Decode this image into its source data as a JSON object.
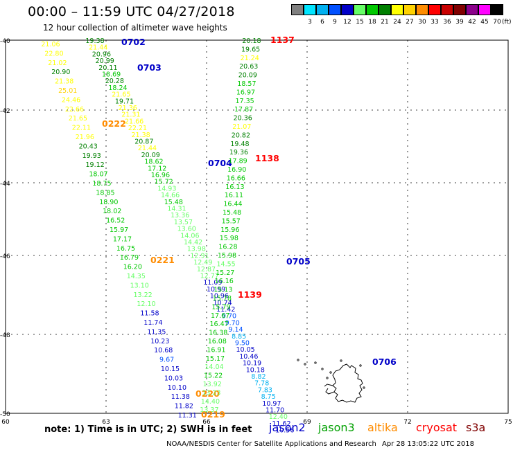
{
  "title": "00:00 – 11:59 UTC 04/27/2018",
  "subtitle": "12 hour collection of altimeter wave heights",
  "legend": {
    "unit": "(ft)",
    "items": [
      {
        "color": "#808080",
        "label": ""
      },
      {
        "color": "#00e5ff",
        "label": "3"
      },
      {
        "color": "#00b0f0",
        "label": "6"
      },
      {
        "color": "#0050ff",
        "label": "9"
      },
      {
        "color": "#0000c8",
        "label": "12"
      },
      {
        "color": "#66ff66",
        "label": "15"
      },
      {
        "color": "#00c800",
        "label": "18"
      },
      {
        "color": "#008000",
        "label": "21"
      },
      {
        "color": "#ffff00",
        "label": "24"
      },
      {
        "color": "#ffd200",
        "label": "27"
      },
      {
        "color": "#ff8c00",
        "label": "30"
      },
      {
        "color": "#ff0000",
        "label": "33"
      },
      {
        "color": "#c80000",
        "label": "36"
      },
      {
        "color": "#800000",
        "label": "39"
      },
      {
        "color": "#8b008b",
        "label": "42"
      },
      {
        "color": "#ff00ff",
        "label": "45"
      },
      {
        "color": "#000000",
        "label": "70"
      }
    ]
  },
  "axes": {
    "lat_labels": [
      "-40",
      "-42",
      "-44",
      "-46",
      "-48",
      "-50"
    ],
    "lon_labels": [
      "60",
      "63",
      "66",
      "69",
      "72",
      "75"
    ]
  },
  "tracks": [
    {
      "id": "A",
      "ids": [
        {
          "text": "0702",
          "color": "#0000c8"
        },
        {
          "text": "0703",
          "color": "#0000c8"
        },
        {
          "text": "0704",
          "color": "#0000c8"
        },
        {
          "text": "0705",
          "color": "#0000c8"
        },
        {
          "text": "0706",
          "color": "#0000c8"
        }
      ],
      "points": [
        {
          "v": "19.38",
          "c": "#008000"
        },
        {
          "v": "21.44",
          "c": "#ffff00"
        },
        {
          "v": "20.96",
          "c": "#008000"
        },
        {
          "v": "20.99",
          "c": "#008000"
        },
        {
          "v": "20.11",
          "c": "#008000"
        },
        {
          "v": "18.69",
          "c": "#00c800"
        },
        {
          "v": "20.28",
          "c": "#008000"
        },
        {
          "v": "18.24",
          "c": "#00c800"
        },
        {
          "v": "21.65",
          "c": "#ffff00"
        },
        {
          "v": "19.71",
          "c": "#008000"
        },
        {
          "v": "21.36",
          "c": "#ffff00"
        },
        {
          "v": "21.31",
          "c": "#ffff00"
        },
        {
          "v": "21.66",
          "c": "#ffff00"
        },
        {
          "v": "22.21",
          "c": "#ffff00"
        },
        {
          "v": "21.38",
          "c": "#ffff00"
        },
        {
          "v": "20.87",
          "c": "#008000"
        },
        {
          "v": "21.44",
          "c": "#ffff00"
        },
        {
          "v": "20.09",
          "c": "#008000"
        },
        {
          "v": "18.62",
          "c": "#00c800"
        },
        {
          "v": "17.12",
          "c": "#00c800"
        },
        {
          "v": "16.96",
          "c": "#00c800"
        },
        {
          "v": "15.72",
          "c": "#00c800"
        },
        {
          "v": "14.93",
          "c": "#66ff66"
        },
        {
          "v": "14.66",
          "c": "#66ff66"
        },
        {
          "v": "15.48",
          "c": "#00c800"
        },
        {
          "v": "14.31",
          "c": "#66ff66"
        },
        {
          "v": "13.36",
          "c": "#66ff66"
        },
        {
          "v": "13.57",
          "c": "#66ff66"
        },
        {
          "v": "13.60",
          "c": "#66ff66"
        },
        {
          "v": "14.06",
          "c": "#66ff66"
        },
        {
          "v": "14.42",
          "c": "#66ff66"
        },
        {
          "v": "13.98",
          "c": "#66ff66"
        },
        {
          "v": "12.91",
          "c": "#66ff66"
        },
        {
          "v": "12.49",
          "c": "#66ff66"
        },
        {
          "v": "12.87",
          "c": "#66ff66"
        },
        {
          "v": "12.77",
          "c": "#66ff66"
        },
        {
          "v": "11.09",
          "c": "#0000c8"
        },
        {
          "v": "10.99",
          "c": "#0000c8"
        },
        {
          "v": "10.96",
          "c": "#0000c8"
        },
        {
          "v": "10.74",
          "c": "#0000c8"
        },
        {
          "v": "11.42",
          "c": "#0000c8"
        },
        {
          "v": "9.70",
          "c": "#0050ff"
        },
        {
          "v": "9.70",
          "c": "#0050ff"
        },
        {
          "v": "9.14",
          "c": "#0050ff"
        },
        {
          "v": "8.85",
          "c": "#00b0f0"
        },
        {
          "v": "9.50",
          "c": "#0050ff"
        },
        {
          "v": "10.05",
          "c": "#0000c8"
        },
        {
          "v": "10.46",
          "c": "#0000c8"
        },
        {
          "v": "10.19",
          "c": "#0000c8"
        },
        {
          "v": "10.18",
          "c": "#0000c8"
        },
        {
          "v": "8.82",
          "c": "#00b0f0"
        },
        {
          "v": "7.78",
          "c": "#00b0f0"
        },
        {
          "v": "7.83",
          "c": "#00b0f0"
        },
        {
          "v": "8.75",
          "c": "#00b0f0"
        },
        {
          "v": "10.97",
          "c": "#0000c8"
        },
        {
          "v": "11.70",
          "c": "#0000c8"
        },
        {
          "v": "12.40",
          "c": "#66ff66"
        },
        {
          "v": "11.62",
          "c": "#0000c8"
        },
        {
          "v": "10.56",
          "c": "#0000c8"
        }
      ]
    },
    {
      "id": "B",
      "ids": [
        {
          "text": "0222",
          "color": "#ff8c00"
        },
        {
          "text": "0221",
          "color": "#ff8c00"
        },
        {
          "text": "0220",
          "color": "#ff8c00"
        },
        {
          "text": "0219",
          "color": "#ff8c00"
        }
      ],
      "points": [
        {
          "v": "21.06",
          "c": "#ffff00"
        },
        {
          "v": "22.80",
          "c": "#ffff00"
        },
        {
          "v": "21.02",
          "c": "#ffff00"
        },
        {
          "v": "20.90",
          "c": "#008000"
        },
        {
          "v": "21.38",
          "c": "#ffff00"
        },
        {
          "v": "25.01",
          "c": "#ffd200"
        },
        {
          "v": "24.46",
          "c": "#ffff00"
        },
        {
          "v": "22.66",
          "c": "#ffff00"
        },
        {
          "v": "21.65",
          "c": "#ffff00"
        },
        {
          "v": "22.11",
          "c": "#ffff00"
        },
        {
          "v": "21.96",
          "c": "#ffff00"
        },
        {
          "v": "20.43",
          "c": "#008000"
        },
        {
          "v": "19.93",
          "c": "#008000"
        },
        {
          "v": "19.12",
          "c": "#008000"
        },
        {
          "v": "18.07",
          "c": "#00c800"
        },
        {
          "v": "18.75",
          "c": "#00c800"
        },
        {
          "v": "18.85",
          "c": "#00c800"
        },
        {
          "v": "18.90",
          "c": "#00c800"
        },
        {
          "v": "18.02",
          "c": "#00c800"
        },
        {
          "v": "16.52",
          "c": "#00c800"
        },
        {
          "v": "15.97",
          "c": "#00c800"
        },
        {
          "v": "17.17",
          "c": "#00c800"
        },
        {
          "v": "16.75",
          "c": "#00c800"
        },
        {
          "v": "16.79",
          "c": "#00c800"
        },
        {
          "v": "16.20",
          "c": "#00c800"
        },
        {
          "v": "14.35",
          "c": "#66ff66"
        },
        {
          "v": "13.10",
          "c": "#66ff66"
        },
        {
          "v": "13.22",
          "c": "#66ff66"
        },
        {
          "v": "12.10",
          "c": "#66ff66"
        },
        {
          "v": "11.58",
          "c": "#0000c8"
        },
        {
          "v": "11.74",
          "c": "#0000c8"
        },
        {
          "v": "11.35",
          "c": "#0000c8"
        },
        {
          "v": "10.23",
          "c": "#0000c8"
        },
        {
          "v": "10.68",
          "c": "#0000c8"
        },
        {
          "v": "9.67",
          "c": "#0050ff"
        },
        {
          "v": "10.15",
          "c": "#0000c8"
        },
        {
          "v": "10.03",
          "c": "#0000c8"
        },
        {
          "v": "10.10",
          "c": "#0000c8"
        },
        {
          "v": "11.38",
          "c": "#0000c8"
        },
        {
          "v": "11.82",
          "c": "#0000c8"
        },
        {
          "v": "11.31",
          "c": "#0000c8"
        }
      ]
    },
    {
      "id": "C",
      "ids": [
        {
          "text": "1137",
          "color": "#ff0000"
        },
        {
          "text": "1138",
          "color": "#ff0000"
        },
        {
          "text": "1139",
          "color": "#ff0000"
        }
      ],
      "points": [
        {
          "v": "20.18",
          "c": "#008000"
        },
        {
          "v": "19.65",
          "c": "#008000"
        },
        {
          "v": "21.24",
          "c": "#ffff00"
        },
        {
          "v": "20.63",
          "c": "#008000"
        },
        {
          "v": "20.09",
          "c": "#008000"
        },
        {
          "v": "18.57",
          "c": "#00c800"
        },
        {
          "v": "16.97",
          "c": "#00c800"
        },
        {
          "v": "17.35",
          "c": "#00c800"
        },
        {
          "v": "17.87",
          "c": "#00c800"
        },
        {
          "v": "20.36",
          "c": "#008000"
        },
        {
          "v": "21.07",
          "c": "#ffff00"
        },
        {
          "v": "20.82",
          "c": "#008000"
        },
        {
          "v": "19.48",
          "c": "#008000"
        },
        {
          "v": "19.36",
          "c": "#008000"
        },
        {
          "v": "17.89",
          "c": "#00c800"
        },
        {
          "v": "16.90",
          "c": "#00c800"
        },
        {
          "v": "16.66",
          "c": "#00c800"
        },
        {
          "v": "16.13",
          "c": "#00c800"
        },
        {
          "v": "16.11",
          "c": "#00c800"
        },
        {
          "v": "16.44",
          "c": "#00c800"
        },
        {
          "v": "15.48",
          "c": "#00c800"
        },
        {
          "v": "15.57",
          "c": "#00c800"
        },
        {
          "v": "15.96",
          "c": "#00c800"
        },
        {
          "v": "15.98",
          "c": "#00c800"
        },
        {
          "v": "16.28",
          "c": "#00c800"
        },
        {
          "v": "15.98",
          "c": "#00c800"
        },
        {
          "v": "14.55",
          "c": "#66ff66"
        },
        {
          "v": "15.27",
          "c": "#00c800"
        },
        {
          "v": "16.16",
          "c": "#00c800"
        },
        {
          "v": "15.13",
          "c": "#00c800"
        },
        {
          "v": "15.78",
          "c": "#00c800"
        },
        {
          "v": "15.79",
          "c": "#00c800"
        },
        {
          "v": "17.67",
          "c": "#00c800"
        },
        {
          "v": "16.47",
          "c": "#00c800"
        },
        {
          "v": "16.38",
          "c": "#00c800"
        },
        {
          "v": "16.08",
          "c": "#00c800"
        },
        {
          "v": "16.91",
          "c": "#00c800"
        },
        {
          "v": "15.17",
          "c": "#00c800"
        },
        {
          "v": "14.04",
          "c": "#66ff66"
        },
        {
          "v": "15.22",
          "c": "#00c800"
        },
        {
          "v": "13.92",
          "c": "#66ff66"
        },
        {
          "v": "13.23",
          "c": "#66ff66"
        },
        {
          "v": "14.40",
          "c": "#66ff66"
        },
        {
          "v": "13.37",
          "c": "#66ff66"
        }
      ]
    }
  ],
  "footer": {
    "note": "note:  1) Time is in UTC;  2) SWH is in feet",
    "satellites": [
      {
        "name": "jason2",
        "color": "#0000c8"
      },
      {
        "name": "jason3",
        "color": "#00a000"
      },
      {
        "name": "altika",
        "color": "#ff8c00"
      },
      {
        "name": "cryosat",
        "color": "#ff0000"
      },
      {
        "name": "s3a",
        "color": "#800000"
      }
    ],
    "credit": "NOAA/NESDIS Center for Satellite Applications and Research",
    "timestamp": "Apr 28 13:05:22 UTC 2018"
  }
}
